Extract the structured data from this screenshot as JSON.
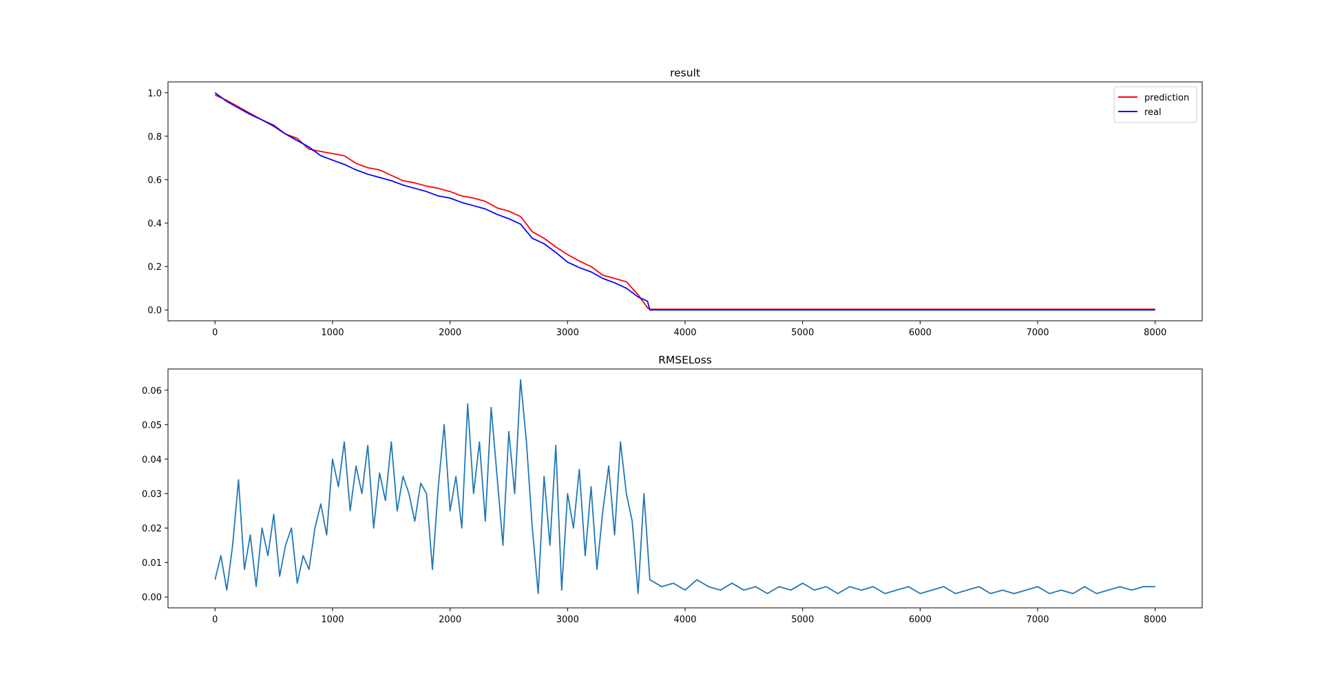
{
  "chart_data": [
    {
      "type": "line",
      "title": "result",
      "legend": "upper right",
      "xlim": [
        -400,
        8400
      ],
      "xticks": [
        0,
        1000,
        2000,
        3000,
        4000,
        5000,
        6000,
        7000,
        8000
      ],
      "ylim": [
        -0.05,
        1.05
      ],
      "yticks": [
        {
          "value": 0,
          "label": "0.0"
        },
        {
          "value": 0.2,
          "label": "0.2"
        },
        {
          "value": 0.4,
          "label": "0.4"
        },
        {
          "value": 0.6,
          "label": "0.6"
        },
        {
          "value": 0.8,
          "label": "0.8"
        },
        {
          "value": 1,
          "label": "1.0"
        }
      ],
      "x": [
        0,
        100,
        200,
        300,
        400,
        500,
        600,
        700,
        800,
        900,
        1000,
        1100,
        1200,
        1300,
        1400,
        1500,
        1600,
        1700,
        1800,
        1900,
        2000,
        2100,
        2200,
        2300,
        2400,
        2500,
        2600,
        2700,
        2800,
        2900,
        3000,
        3100,
        3200,
        3300,
        3400,
        3500,
        3600,
        3680,
        3700,
        3800,
        3900,
        4000,
        4100,
        4200,
        4300,
        4400,
        4500,
        4600,
        4700,
        4800,
        4900,
        5000,
        5100,
        5200,
        5300,
        5400,
        5500,
        5600,
        5700,
        5800,
        5900,
        6000,
        6100,
        6200,
        6300,
        6400,
        6500,
        6600,
        6700,
        6800,
        6900,
        7000,
        7100,
        7200,
        7300,
        7400,
        7500,
        7600,
        7700,
        7800,
        7900,
        8000
      ],
      "series": [
        {
          "name": "prediction",
          "color": "#ff0000",
          "values": [
            0.99,
            0.965,
            0.935,
            0.905,
            0.875,
            0.845,
            0.81,
            0.79,
            0.74,
            0.73,
            0.72,
            0.71,
            0.675,
            0.655,
            0.645,
            0.62,
            0.595,
            0.585,
            0.57,
            0.56,
            0.545,
            0.525,
            0.515,
            0.5,
            0.47,
            0.455,
            0.43,
            0.36,
            0.33,
            0.29,
            0.255,
            0.225,
            0.2,
            0.16,
            0.145,
            0.13,
            0.07,
            0.01,
            0.003,
            0.003,
            0.003,
            0.003,
            0.003,
            0.003,
            0.003,
            0.003,
            0.003,
            0.003,
            0.003,
            0.003,
            0.003,
            0.003,
            0.003,
            0.003,
            0.003,
            0.003,
            0.003,
            0.003,
            0.003,
            0.003,
            0.003,
            0.003,
            0.003,
            0.003,
            0.003,
            0.003,
            0.003,
            0.003,
            0.003,
            0.003,
            0.003,
            0.003,
            0.003,
            0.003,
            0.003,
            0.003,
            0.003,
            0.003,
            0.003,
            0.003,
            0.003,
            0.003
          ]
        },
        {
          "name": "real",
          "color": "#0000ff",
          "values": [
            1.0,
            0.96,
            0.93,
            0.9,
            0.875,
            0.85,
            0.81,
            0.78,
            0.75,
            0.71,
            0.69,
            0.67,
            0.645,
            0.625,
            0.61,
            0.595,
            0.575,
            0.56,
            0.545,
            0.525,
            0.515,
            0.495,
            0.48,
            0.465,
            0.44,
            0.42,
            0.395,
            0.33,
            0.305,
            0.265,
            0.22,
            0.195,
            0.175,
            0.145,
            0.125,
            0.1,
            0.06,
            0.04,
            0,
            0,
            0,
            0,
            0,
            0,
            0,
            0,
            0,
            0,
            0,
            0,
            0,
            0,
            0,
            0,
            0,
            0,
            0,
            0,
            0,
            0,
            0,
            0,
            0,
            0,
            0,
            0,
            0,
            0,
            0,
            0,
            0,
            0,
            0,
            0,
            0,
            0,
            0,
            0,
            0,
            0,
            0,
            0
          ]
        }
      ]
    },
    {
      "type": "line",
      "title": "RMSELoss",
      "color": "#1f77b4",
      "xlim": [
        -400,
        8400
      ],
      "xticks": [
        0,
        1000,
        2000,
        3000,
        4000,
        5000,
        6000,
        7000,
        8000
      ],
      "ylim": [
        -0.00315,
        0.06615
      ],
      "yticks": [
        {
          "value": 0,
          "label": "0.00"
        },
        {
          "value": 0.01,
          "label": "0.01"
        },
        {
          "value": 0.02,
          "label": "0.02"
        },
        {
          "value": 0.03,
          "label": "0.03"
        },
        {
          "value": 0.04,
          "label": "0.04"
        },
        {
          "value": 0.05,
          "label": "0.05"
        },
        {
          "value": 0.06,
          "label": "0.06"
        }
      ],
      "x": [
        0,
        50,
        100,
        150,
        200,
        250,
        300,
        350,
        400,
        450,
        500,
        550,
        600,
        650,
        700,
        750,
        800,
        850,
        900,
        950,
        1000,
        1050,
        1100,
        1150,
        1200,
        1250,
        1300,
        1350,
        1400,
        1450,
        1500,
        1550,
        1600,
        1650,
        1700,
        1750,
        1800,
        1850,
        1900,
        1950,
        2000,
        2050,
        2100,
        2150,
        2200,
        2250,
        2300,
        2350,
        2400,
        2450,
        2500,
        2550,
        2600,
        2650,
        2700,
        2750,
        2800,
        2850,
        2900,
        2950,
        3000,
        3050,
        3100,
        3150,
        3200,
        3250,
        3300,
        3350,
        3400,
        3450,
        3500,
        3550,
        3600,
        3650,
        3700,
        3800,
        3900,
        4000,
        4100,
        4200,
        4300,
        4400,
        4500,
        4600,
        4700,
        4800,
        4900,
        5000,
        5100,
        5200,
        5300,
        5400,
        5500,
        5600,
        5700,
        5800,
        5900,
        6000,
        6100,
        6200,
        6300,
        6400,
        6500,
        6600,
        6700,
        6800,
        6900,
        7000,
        7100,
        7200,
        7300,
        7400,
        7500,
        7600,
        7700,
        7800,
        7900,
        8000
      ],
      "values": [
        0.005,
        0.012,
        0.002,
        0.015,
        0.034,
        0.008,
        0.018,
        0.003,
        0.02,
        0.012,
        0.024,
        0.006,
        0.015,
        0.02,
        0.004,
        0.012,
        0.008,
        0.02,
        0.027,
        0.018,
        0.04,
        0.032,
        0.045,
        0.025,
        0.038,
        0.03,
        0.044,
        0.02,
        0.036,
        0.028,
        0.045,
        0.025,
        0.035,
        0.03,
        0.022,
        0.033,
        0.03,
        0.008,
        0.032,
        0.05,
        0.025,
        0.035,
        0.02,
        0.056,
        0.03,
        0.045,
        0.022,
        0.055,
        0.035,
        0.015,
        0.048,
        0.03,
        0.063,
        0.045,
        0.02,
        0.001,
        0.035,
        0.015,
        0.044,
        0.002,
        0.03,
        0.02,
        0.037,
        0.012,
        0.032,
        0.008,
        0.025,
        0.038,
        0.018,
        0.045,
        0.03,
        0.022,
        0.001,
        0.03,
        0.005,
        0.003,
        0.004,
        0.002,
        0.005,
        0.003,
        0.002,
        0.004,
        0.002,
        0.003,
        0.001,
        0.003,
        0.002,
        0.004,
        0.002,
        0.003,
        0.001,
        0.003,
        0.002,
        0.003,
        0.001,
        0.002,
        0.003,
        0.001,
        0.002,
        0.003,
        0.001,
        0.002,
        0.003,
        0.001,
        0.002,
        0.001,
        0.002,
        0.003,
        0.001,
        0.002,
        0.001,
        0.003,
        0.001,
        0.002,
        0.003,
        0.002,
        0.003,
        0.003
      ]
    }
  ]
}
